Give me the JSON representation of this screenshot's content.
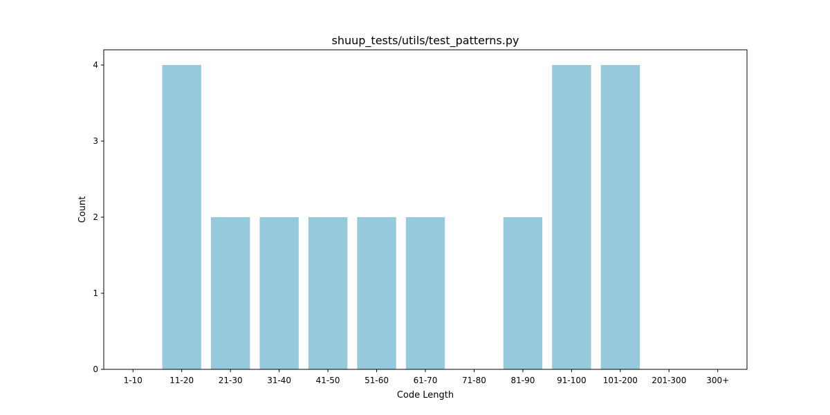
{
  "chart_data": {
    "type": "bar",
    "title": "shuup_tests/utils/test_patterns.py",
    "xlabel": "Code Length",
    "ylabel": "Count",
    "categories": [
      "1-10",
      "11-20",
      "21-30",
      "31-40",
      "41-50",
      "51-60",
      "61-70",
      "71-80",
      "81-90",
      "91-100",
      "101-200",
      "201-300",
      "300+"
    ],
    "values": [
      0,
      4,
      2,
      2,
      2,
      2,
      2,
      0,
      2,
      4,
      4,
      0,
      0
    ],
    "ylim": [
      0,
      4.2
    ],
    "yticks": [
      0,
      1,
      2,
      3,
      4
    ],
    "bar_color": "#96c9dc",
    "grid": false,
    "legend": "none"
  }
}
